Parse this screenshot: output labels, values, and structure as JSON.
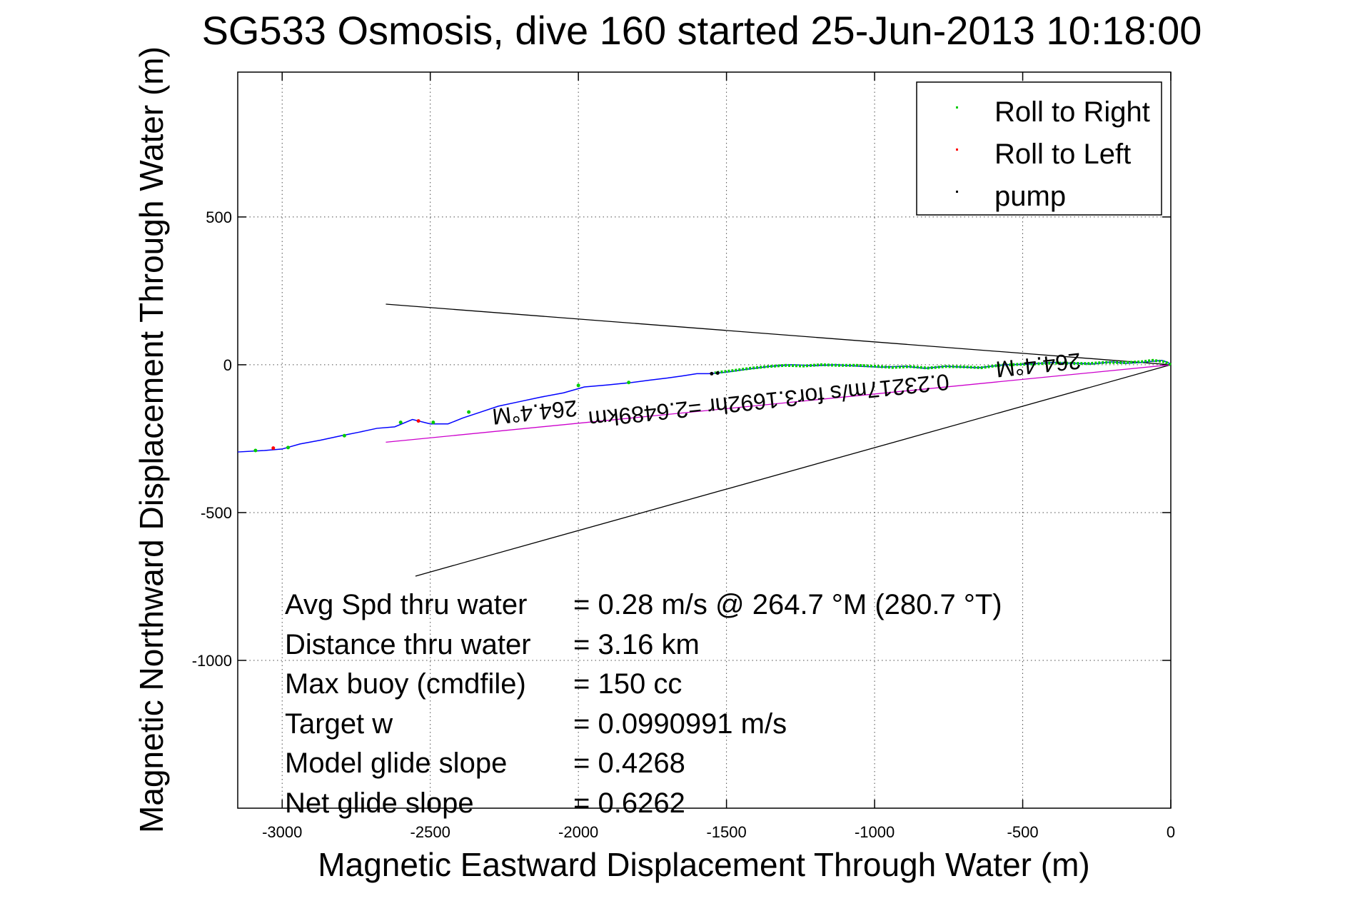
{
  "chart_data": {
    "type": "scatter",
    "title": "SG533 Osmosis, dive 160 started 25-Jun-2013 10:18:00",
    "xlabel": "Magnetic Eastward Displacement Through Water (m)",
    "ylabel": "Magnetic Northward Displacement Through Water (m)",
    "xlim": [
      -3150,
      0
    ],
    "ylim": [
      -1500,
      990
    ],
    "xticks": [
      -3000,
      -2500,
      -2000,
      -1500,
      -1000,
      -500,
      0
    ],
    "yticks": [
      500,
      0,
      -500,
      -1000
    ],
    "grid": true,
    "legend_position": "top-right",
    "legend": [
      {
        "label": "Roll to Right",
        "color": "#00cc00"
      },
      {
        "label": "Roll to Left",
        "color": "#ff0000"
      },
      {
        "label": "pump",
        "color": "#000000"
      }
    ],
    "track": {
      "color": "#0000ff",
      "x": [
        0,
        -10,
        -30,
        -60,
        -100,
        -150,
        -200,
        -260,
        -330,
        -400,
        -480,
        -560,
        -650,
        -700,
        -760,
        -830,
        -900,
        -980,
        -1050,
        -1130,
        -1200,
        -1280,
        -1350,
        -1430,
        -1500,
        -1560,
        -1600,
        -1650,
        -1700,
        -1760,
        -1820,
        -1900,
        -1980,
        -2050,
        -2130,
        -2200,
        -2270,
        -2330,
        -2390,
        -2440,
        -2500,
        -2560,
        -2620,
        -2680,
        -2740,
        -2800,
        -2870,
        -2940,
        -3000,
        -3060,
        -3150
      ],
      "y": [
        0,
        8,
        15,
        12,
        8,
        5,
        10,
        3,
        5,
        8,
        2,
        0,
        -10,
        -8,
        -5,
        -12,
        -5,
        -8,
        -5,
        0,
        -3,
        0,
        -5,
        -15,
        -25,
        -30,
        -30,
        -38,
        -45,
        -52,
        -60,
        -68,
        -75,
        -95,
        -110,
        -125,
        -140,
        -160,
        -180,
        -200,
        -200,
        -185,
        -210,
        -215,
        -228,
        -240,
        -255,
        -268,
        -285,
        -290,
        -295
      ]
    },
    "roll_right_segments": [
      {
        "x": [
          0,
          -20,
          -60,
          -100,
          -160,
          -220,
          -280,
          -340,
          -400,
          -460,
          -520,
          -580,
          -640,
          -700,
          -760,
          -820,
          -880,
          -940,
          -1000,
          -1060,
          -1120,
          -1180,
          -1240,
          -1300,
          -1360,
          -1420,
          -1480,
          -1540
        ],
        "y": [
          0,
          10,
          15,
          10,
          7,
          8,
          4,
          5,
          6,
          3,
          1,
          -2,
          -10,
          -7,
          -6,
          -11,
          -6,
          -9,
          -5,
          -2,
          -2,
          0,
          -4,
          -2,
          -6,
          -12,
          -20,
          -27
        ]
      }
    ],
    "roll_right_points": {
      "x": [
        -1830,
        -2000,
        -2370,
        -2490,
        -2600,
        -2790,
        -2980,
        -3090
      ],
      "y": [
        -60,
        -70,
        -160,
        -195,
        -195,
        -240,
        -280,
        -290
      ]
    },
    "roll_left_points": {
      "x": [
        -2540,
        -3030
      ],
      "y": [
        -190,
        -282
      ]
    },
    "pump_points": {
      "x": [
        -1530,
        -1550
      ],
      "y": [
        -28,
        -30
      ]
    },
    "heading_lines": [
      {
        "x": [
          0,
          -2650
        ],
        "y": [
          0,
          205
        ],
        "color": "#000000"
      },
      {
        "x": [
          0,
          -2550
        ],
        "y": [
          0,
          -715
        ],
        "color": "#000000"
      },
      {
        "x": [
          0,
          -2650
        ],
        "y": [
          0,
          -262
        ],
        "color": "#cc00cc"
      }
    ],
    "annotations": [
      {
        "text": "264.4°M",
        "x": -2150,
        "y": -135,
        "rotation": 174
      },
      {
        "text": "264.4°M",
        "x": -450,
        "y": 25,
        "rotation": 174
      },
      {
        "text": "0.23217m/s for3.1692hr =2.6489km",
        "x": -1360,
        "y": -95,
        "rotation": 174
      }
    ],
    "stats": [
      {
        "label": "Avg Spd thru water",
        "value": "=  0.28 m/s @ 264.7 °M (280.7 °T)"
      },
      {
        "label": "Distance thru water",
        "value": "=  3.16 km"
      },
      {
        "label": "Max buoy (cmdfile)",
        "value": "= 150 cc"
      },
      {
        "label": "Target w",
        "value": "= 0.0990991 m/s"
      },
      {
        "label": "Model glide slope",
        "value": "= 0.4268"
      },
      {
        "label": "Net glide slope",
        "value": "= 0.6262"
      }
    ]
  }
}
